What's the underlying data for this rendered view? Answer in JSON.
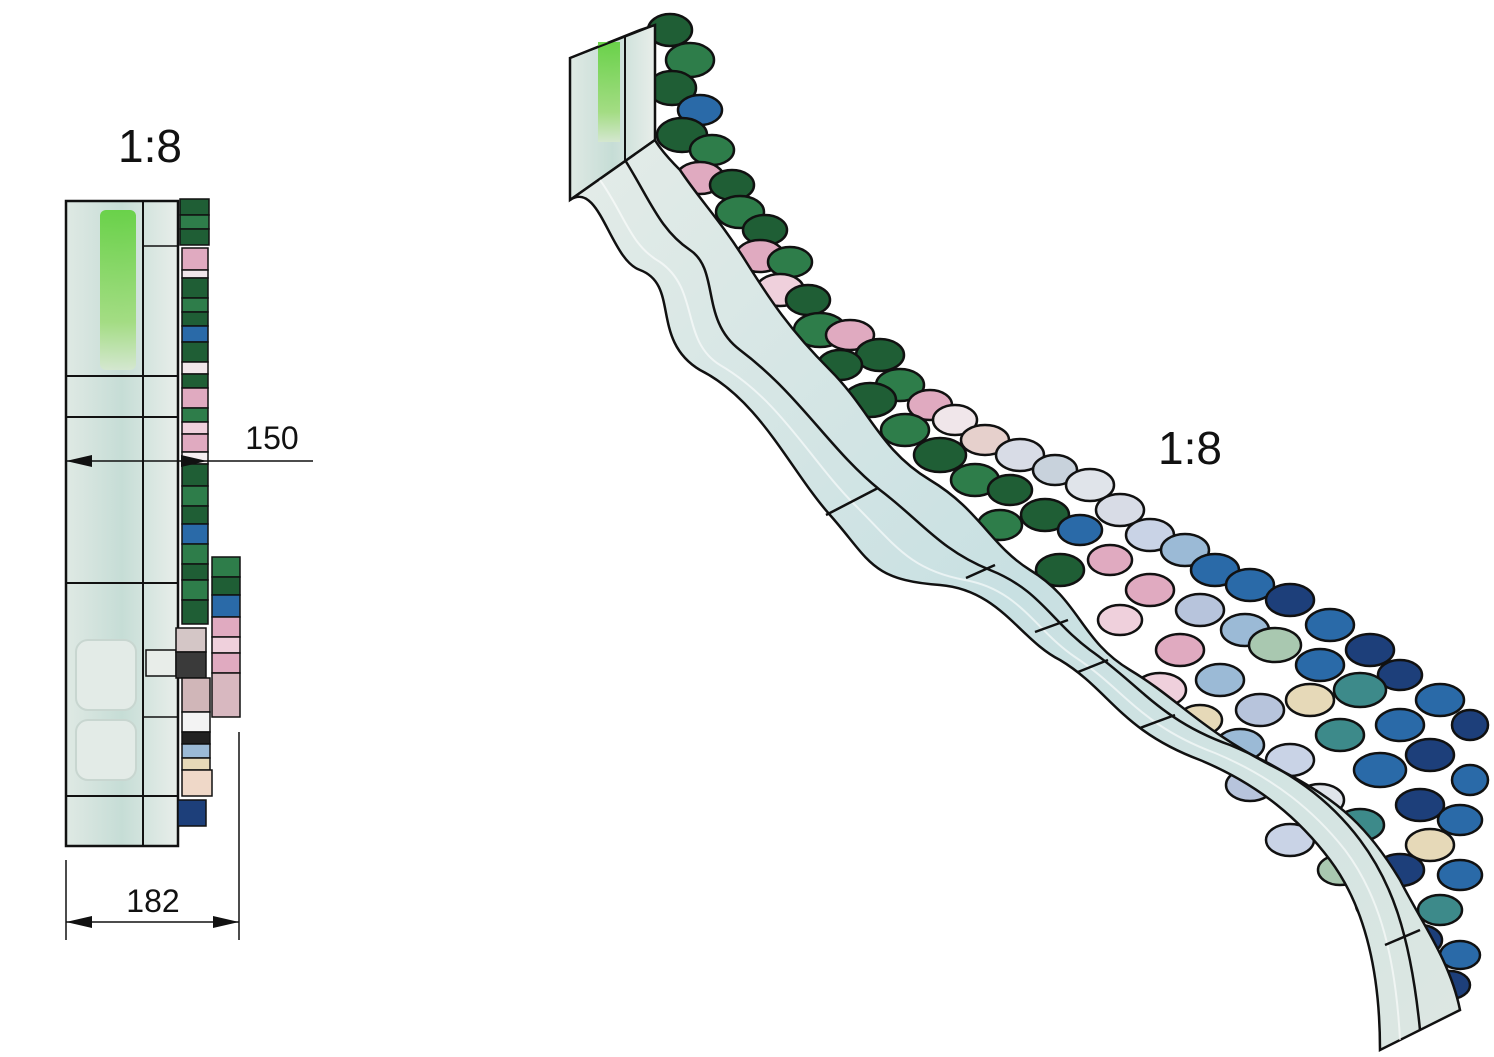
{
  "front_view": {
    "scale_label": "1:8",
    "depth_dimension": "150",
    "width_dimension": "182"
  },
  "perspective_view": {
    "scale_label": "1:8"
  },
  "palette": {
    "glass_light": "#cfe3dc",
    "glass_mid": "#b9d2cc",
    "glass_green": "#6fcf4a",
    "green_dark": "#1f5e35",
    "green_mid": "#2e7d4a",
    "blue": "#2a6aa8",
    "blue_dark": "#1d3f7a",
    "pink": "#e0aac0",
    "pink_light": "#efd0dc",
    "sky": "#9bbad6",
    "cream": "#e6d9b8",
    "teal": "#3d8a8a",
    "outline": "#111111"
  }
}
